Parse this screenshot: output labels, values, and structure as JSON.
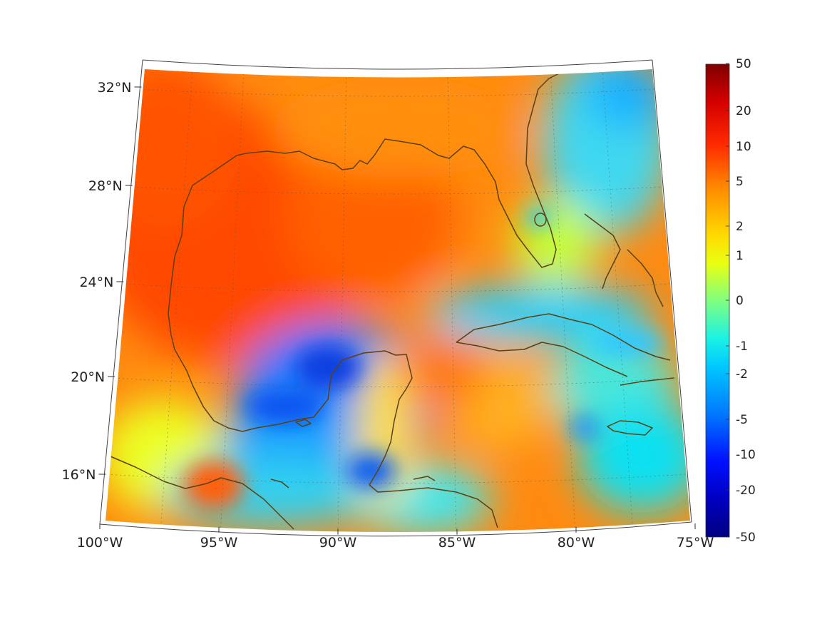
{
  "map": {
    "projection": "conic",
    "lon_range": [
      -100,
      -75
    ],
    "lat_range": [
      14.5,
      32.5
    ],
    "colormap": "jet",
    "coastline_color": "#5c4113",
    "grid": "dotted",
    "lon_ticks": [
      {
        "value": -100,
        "label": "100°W"
      },
      {
        "value": -95,
        "label": "95°W"
      },
      {
        "value": -90,
        "label": "90°W"
      },
      {
        "value": -85,
        "label": "85°W"
      },
      {
        "value": -80,
        "label": "80°W"
      },
      {
        "value": -75,
        "label": "75°W"
      }
    ],
    "lat_ticks": [
      {
        "value": 16,
        "label": "16°N"
      },
      {
        "value": 20,
        "label": "20°N"
      },
      {
        "value": 24,
        "label": "24°N"
      },
      {
        "value": 28,
        "label": "28°N"
      },
      {
        "value": 32,
        "label": "32°N"
      }
    ]
  },
  "colorbar": {
    "placement": "right",
    "scale": "symmetric-log",
    "ticks": [
      "50",
      "20",
      "10",
      "5",
      "2",
      "1",
      "0",
      "-1",
      "-2",
      "-5",
      "-10",
      "-20",
      "-50"
    ]
  }
}
